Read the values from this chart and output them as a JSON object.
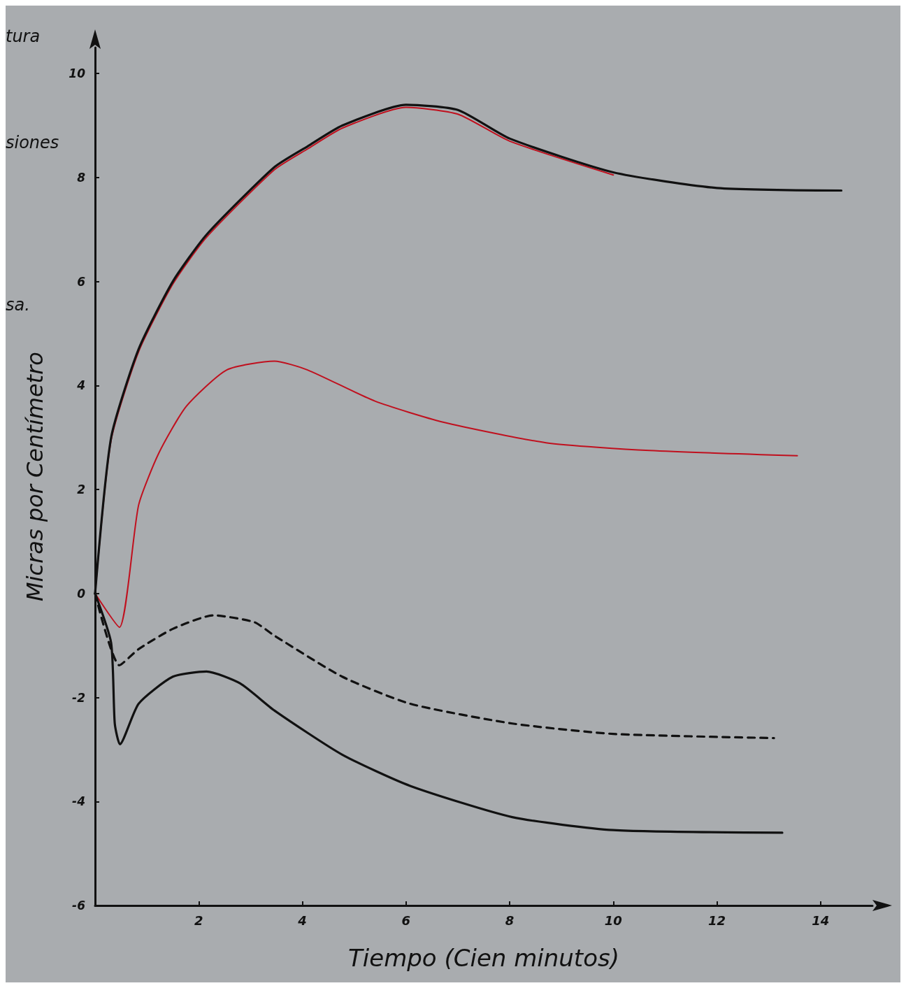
{
  "chart_data": {
    "type": "line",
    "xlabel": "Tiempo (Cien minutos)",
    "ylabel": "Micras por Centímetro",
    "annotations": [
      "tura",
      "siones",
      "sa."
    ],
    "xlim": [
      0,
      15
    ],
    "xticks": [
      2,
      4,
      6,
      8,
      10,
      12,
      14
    ],
    "ylim": [
      -6,
      10.5
    ],
    "yticks": [
      -6,
      -4,
      -2,
      0,
      2,
      4,
      6,
      8,
      10
    ],
    "grid": false,
    "marker": "none",
    "series": [
      {
        "color": "#c0101e",
        "line_style": "solid",
        "x": [
          0,
          0.31,
          0.84,
          1.5,
          2.15,
          3.46,
          4.1,
          4.77,
          6.0,
          7.0,
          8.0,
          10.0
        ],
        "values": [
          0,
          2.95,
          4.65,
          5.95,
          6.85,
          8.15,
          8.55,
          8.95,
          9.35,
          9.22,
          8.7,
          8.05
        ]
      },
      {
        "color": "#111111",
        "line_style": "solid",
        "x": [
          0,
          0.31,
          0.84,
          1.5,
          2.15,
          3.46,
          4.1,
          4.77,
          6.0,
          7.0,
          8.0,
          10.0,
          12.0,
          14.4
        ],
        "values": [
          0,
          3.0,
          4.7,
          6.0,
          6.9,
          8.2,
          8.6,
          9.0,
          9.4,
          9.3,
          8.75,
          8.1,
          7.8,
          7.75
        ]
      },
      {
        "color": "#c0101e",
        "line_style": "solid",
        "x": [
          0,
          0.47,
          0.84,
          1.23,
          1.76,
          2.54,
          3.46,
          4.1,
          5.4,
          6.7,
          8.7,
          10.7,
          13.55
        ],
        "values": [
          0,
          -0.65,
          1.7,
          2.7,
          3.6,
          4.3,
          4.47,
          4.3,
          3.7,
          3.3,
          2.9,
          2.75,
          2.65
        ]
      },
      {
        "color": "#111111",
        "line_style": "dashed",
        "x": [
          0,
          0.47,
          0.84,
          1.5,
          2.28,
          3.07,
          3.46,
          4.77,
          6.08,
          8.05,
          10.0,
          13.1
        ],
        "values": [
          0,
          -1.38,
          -1.07,
          -0.68,
          -0.42,
          -0.55,
          -0.81,
          -1.6,
          -2.12,
          -2.5,
          -2.7,
          -2.78
        ]
      },
      {
        "color": "#111111",
        "line_style": "solid",
        "x": [
          0,
          0.31,
          0.38,
          0.48,
          0.84,
          1.5,
          2.15,
          2.8,
          3.46,
          4.77,
          6.08,
          8.05,
          10.0,
          13.26
        ],
        "values": [
          0,
          -0.95,
          -2.5,
          -2.9,
          -2.12,
          -1.6,
          -1.5,
          -1.73,
          -2.25,
          -3.1,
          -3.7,
          -4.3,
          -4.55,
          -4.6
        ]
      }
    ]
  }
}
